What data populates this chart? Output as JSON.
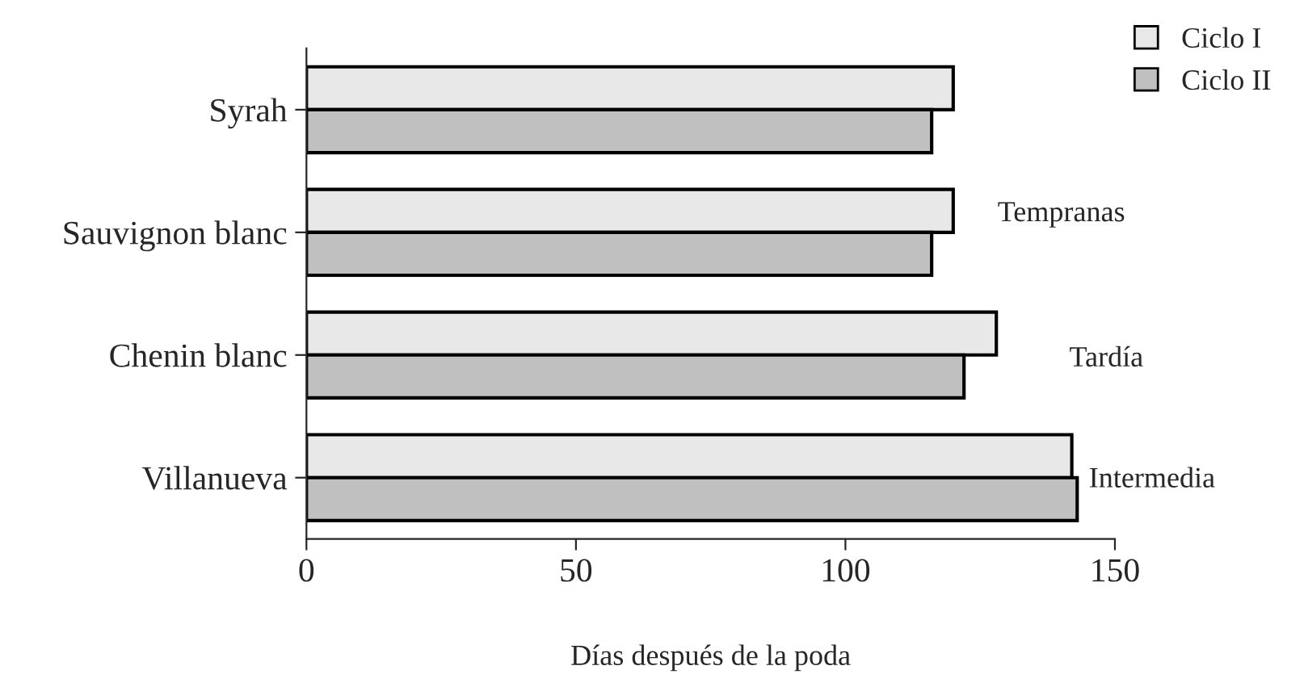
{
  "chart_data": {
    "type": "bar",
    "orientation": "horizontal",
    "xlabel": "Días después de la poda",
    "categories": [
      "Syrah",
      "Sauvignon blanc",
      "Chenin blanc",
      "Villanueva"
    ],
    "series": [
      {
        "name": "Ciclo I",
        "color": "#e8e8e8",
        "values": [
          120,
          120,
          128,
          142
        ]
      },
      {
        "name": "Ciclo II",
        "color": "#c0c0c0",
        "values": [
          116,
          116,
          122,
          143
        ]
      }
    ],
    "xlim": [
      0,
      150
    ],
    "xticks": [
      0,
      50,
      100,
      150
    ],
    "grid": false,
    "legend": "top right",
    "annotations": [
      "Tempranas",
      "Tardía",
      "Intermedia"
    ]
  }
}
